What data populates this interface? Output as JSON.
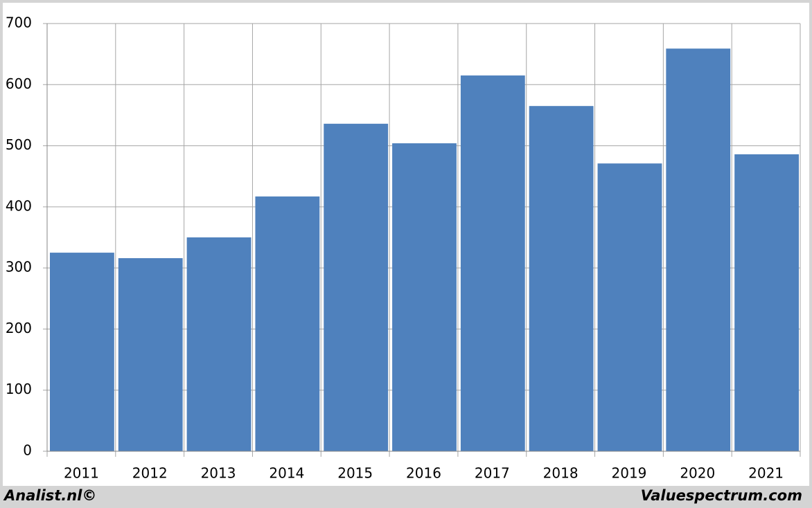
{
  "chart_data": {
    "type": "bar",
    "categories": [
      "2011",
      "2012",
      "2013",
      "2014",
      "2015",
      "2016",
      "2017",
      "2018",
      "2019",
      "2020",
      "2021"
    ],
    "values": [
      325,
      316,
      350,
      417,
      536,
      504,
      615,
      565,
      471,
      659,
      486
    ],
    "color": "#4f81bd",
    "ylim": [
      0,
      700
    ],
    "yticks": [
      0,
      100,
      200,
      300,
      400,
      500,
      600,
      700
    ],
    "grid": true
  },
  "footer": {
    "left": "Analist.nl©",
    "right": "Valuespectrum.com"
  }
}
